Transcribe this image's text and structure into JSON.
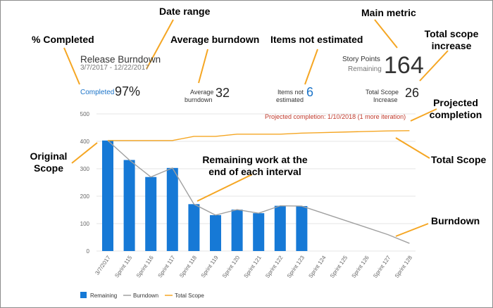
{
  "callouts": {
    "date_range": "Date range",
    "main_metric": "Main metric",
    "pct_completed": "% Completed",
    "avg_burndown": "Average burndown",
    "items_not_estimated": "Items not estimated",
    "total_scope_increase": "Total scope increase",
    "projected_completion": "Projected completion",
    "original_scope": "Original Scope",
    "remaining_work": "Remaining work at the end of each interval",
    "total_scope": "Total Scope",
    "burndown": "Burndown"
  },
  "card": {
    "title": "Release Burndown",
    "date_range": "3/7/2017 - 12/22/2017",
    "main_metric_label_1": "Story Points",
    "main_metric_label_2": "Remaining",
    "main_metric_value": "164",
    "completed_label": "Completed",
    "completed_value": "97%",
    "avg_burndown_label_1": "Average",
    "avg_burndown_label_2": "burndown",
    "avg_burndown_value": "32",
    "not_estimated_label_1": "Items not",
    "not_estimated_label_2": "estimated",
    "not_estimated_value": "6",
    "scope_increase_label_1": "Total Scope",
    "scope_increase_label_2": "Increase",
    "scope_increase_value": "26",
    "projected": "Projected completion: 1/10/2018 (1 more iteration)"
  },
  "colors": {
    "remaining": "#1679d6",
    "burndown": "#a0a0a0",
    "total_scope": "#f5a623",
    "callout_arrow": "#f5a623",
    "projected": "#c0392b",
    "link": "#1a73c8"
  },
  "chart_data": {
    "type": "bar",
    "categories": [
      "3/7/2017",
      "Sprint 115",
      "Sprint 116",
      "Sprint 117",
      "Sprint 118",
      "Sprint 119",
      "Sprint 120",
      "Sprint 121",
      "Sprint 122",
      "Sprint 123",
      "Sprint 124",
      "Sprint 125",
      "Sprint 126",
      "Sprint 127",
      "Sprint 128"
    ],
    "ylim": [
      0,
      500
    ],
    "yticks": [
      0,
      100,
      200,
      300,
      400,
      500
    ],
    "grid": true,
    "legend_position": "bottom-left",
    "series": [
      {
        "name": "Remaining",
        "type": "bar",
        "values": [
          403,
          332,
          270,
          303,
          171,
          131,
          151,
          138,
          165,
          164,
          null,
          null,
          null,
          null,
          null
        ]
      },
      {
        "name": "Burndown",
        "type": "line",
        "values": [
          403,
          332,
          270,
          303,
          171,
          131,
          151,
          138,
          165,
          164,
          138,
          112,
          86,
          60,
          28
        ]
      },
      {
        "name": "Total Scope",
        "type": "line",
        "values": [
          403,
          403,
          403,
          403,
          418,
          418,
          426,
          426,
          426,
          430,
          432,
          434,
          436,
          438,
          439
        ]
      }
    ]
  }
}
